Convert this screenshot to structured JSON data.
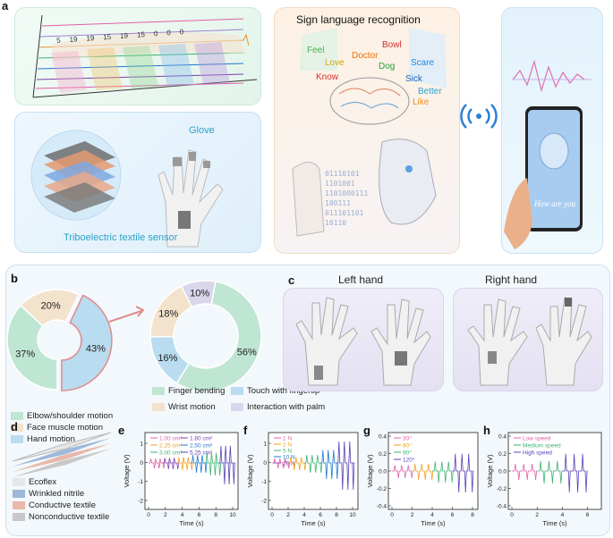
{
  "panel_labels": {
    "a": "a",
    "b": "b",
    "c": "c",
    "d": "d",
    "e": "e",
    "f": "f",
    "g": "g",
    "h": "h"
  },
  "panel_a": {
    "sensor_label": "Triboelectric textile sensor",
    "glove_label": "Glove",
    "recognition_title": "Sign language recognition",
    "words": [
      {
        "text": "Feel",
        "color": "#4caf50"
      },
      {
        "text": "Love",
        "color": "#d4c02a"
      },
      {
        "text": "Know",
        "color": "#d32f2f"
      },
      {
        "text": "Doctor",
        "color": "#ef6c00"
      },
      {
        "text": "Bowl",
        "color": "#d32f2f"
      },
      {
        "text": "Dog",
        "color": "#2e9e3e"
      },
      {
        "text": "Scare",
        "color": "#1e88e5"
      },
      {
        "text": "Sick",
        "color": "#1565c0"
      },
      {
        "text": "Better",
        "color": "#29a3d6"
      },
      {
        "text": "Like",
        "color": "#ef8c1f"
      }
    ],
    "binary_lines": [
      "01110101",
      "1101001",
      "1101000111",
      "100111",
      "011101101",
      "10110"
    ],
    "phone_text": "How are you",
    "tape_digits": [
      "5",
      "19",
      "19",
      "15",
      "19",
      "15",
      "0",
      "0",
      "0"
    ]
  },
  "panel_b": {
    "chart_data": [
      {
        "type": "pie",
        "categories": [
          "Elbow/shoulder motion",
          "Face muscle motion",
          "Hand motion"
        ],
        "values": [
          37,
          20,
          43
        ],
        "labels": [
          "37%",
          "20%",
          "43%"
        ],
        "colors": [
          "#bfe6d3",
          "#f3e2cc",
          "#b9dcf0"
        ]
      },
      {
        "type": "pie",
        "categories": [
          "Finger bending",
          "Touch with fingertip",
          "Wrist motion",
          "Interaction with palm"
        ],
        "values": [
          56,
          16,
          18,
          10
        ],
        "labels": [
          "56%",
          "16%",
          "18%",
          "10%"
        ],
        "colors": [
          "#bfe6d3",
          "#b9dcf0",
          "#f3e2cc",
          "#d9d6ec"
        ]
      }
    ],
    "legend1": [
      {
        "label": "Elbow/shoulder motion",
        "color": "#bfe6d3"
      },
      {
        "label": "Face muscle motion",
        "color": "#f3e2cc"
      },
      {
        "label": "Hand motion",
        "color": "#b9dcf0"
      }
    ],
    "legend2": [
      {
        "label": "Finger bending",
        "color": "#bfe6d3"
      },
      {
        "label": "Touch with fingertip",
        "color": "#b9dcf0"
      },
      {
        "label": "Wrist motion",
        "color": "#f3e2cc"
      },
      {
        "label": "Interaction with palm",
        "color": "#d9d6ec"
      }
    ]
  },
  "panel_c": {
    "left_title": "Left hand",
    "right_title": "Right hand"
  },
  "panel_d": {
    "layers": [
      {
        "label": "Ecoflex",
        "color": "#e6e6e6"
      },
      {
        "label": "Wrinkled nitrile",
        "color": "#9fb8da"
      },
      {
        "label": "Conductive textile",
        "color": "#e8b8a8"
      },
      {
        "label": "Nonconductive textile",
        "color": "#c8c8c8"
      }
    ]
  },
  "plots": {
    "e": {
      "ylabel": "Voltage (V)",
      "xlabel": "Time (s)",
      "yticks": [
        "1",
        "0",
        "-1",
        "-2"
      ],
      "xticks": [
        "0",
        "2",
        "4",
        "6",
        "8",
        "10"
      ],
      "legend": [
        {
          "name": "1.00 cm²",
          "color": "#e05fa8"
        },
        {
          "name": "1.80 cm²",
          "color": "#7b3fb0"
        },
        {
          "name": "2.25 cm²",
          "color": "#f0a020"
        },
        {
          "name": "2.50 cm²",
          "color": "#1f77d0"
        },
        {
          "name": "3.00 cm²",
          "color": "#3cb371"
        },
        {
          "name": "5.25 cm²",
          "color": "#5a3fb8"
        }
      ]
    },
    "f": {
      "ylabel": "Voltage (V)",
      "xlabel": "Time (s)",
      "yticks": [
        "1",
        "0",
        "-1",
        "-2"
      ],
      "xticks": [
        "0",
        "2",
        "4",
        "6",
        "8",
        "10"
      ],
      "legend": [
        {
          "name": "1 N",
          "color": "#e05fa8"
        },
        {
          "name": "2 N",
          "color": "#f0a020"
        },
        {
          "name": "5 N",
          "color": "#3cb371"
        },
        {
          "name": "10 N",
          "color": "#1f77d0"
        },
        {
          "name": "20 N",
          "color": "#5a3fb8"
        }
      ]
    },
    "g": {
      "ylabel": "Voltage (V)",
      "xlabel": "Time (s)",
      "yticks": [
        "0.4",
        "0.2",
        "0.0",
        "-0.2",
        "-0.4"
      ],
      "xticks": [
        "0",
        "2",
        "4",
        "6",
        "8"
      ],
      "legend": [
        {
          "name": "30°",
          "color": "#e05fa8"
        },
        {
          "name": "60°",
          "color": "#f0a020"
        },
        {
          "name": "90°",
          "color": "#3cb371"
        },
        {
          "name": "120°",
          "color": "#5a3fb8"
        }
      ]
    },
    "h": {
      "ylabel": "Voltage (V)",
      "xlabel": "Time (s)",
      "yticks": [
        "0.4",
        "0.2",
        "0.0",
        "-0.2",
        "-0.4"
      ],
      "xticks": [
        "0",
        "2",
        "4",
        "6"
      ],
      "legend": [
        {
          "name": "Low speed",
          "color": "#e05fa8"
        },
        {
          "name": "Medium speed",
          "color": "#3cb371"
        },
        {
          "name": "High speed",
          "color": "#5a3fb8"
        }
      ]
    }
  }
}
